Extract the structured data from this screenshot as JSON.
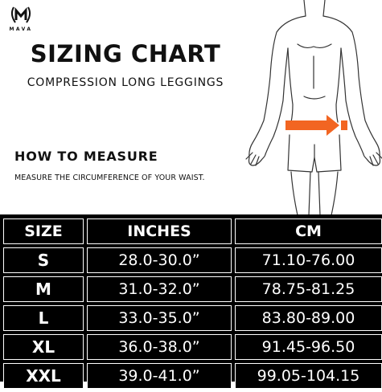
{
  "brand": {
    "name": "MAVA",
    "logo_icon": "laurel-m-icon"
  },
  "title": "SIZING CHART",
  "subtitle": "COMPRESSION LONG LEGGINGS",
  "how_to": {
    "heading": "HOW TO MEASURE",
    "instruction": "MEASURE THE CIRCUMFERENCE OF YOUR WAIST."
  },
  "figure": {
    "icon": "body-outline-icon",
    "arrow_color": "#f26522"
  },
  "table": {
    "headers": [
      "SIZE",
      "INCHES",
      "CM"
    ],
    "rows": [
      {
        "size": "S",
        "inches": "28.0-30.0”",
        "cm": "71.10-76.00"
      },
      {
        "size": "M",
        "inches": "31.0-32.0”",
        "cm": "78.75-81.25"
      },
      {
        "size": "L",
        "inches": "33.0-35.0”",
        "cm": "83.80-89.00"
      },
      {
        "size": "XL",
        "inches": "36.0-38.0”",
        "cm": "91.45-96.50"
      },
      {
        "size": "XXL",
        "inches": "39.0-41.0”",
        "cm": "99.05-104.15"
      }
    ]
  }
}
